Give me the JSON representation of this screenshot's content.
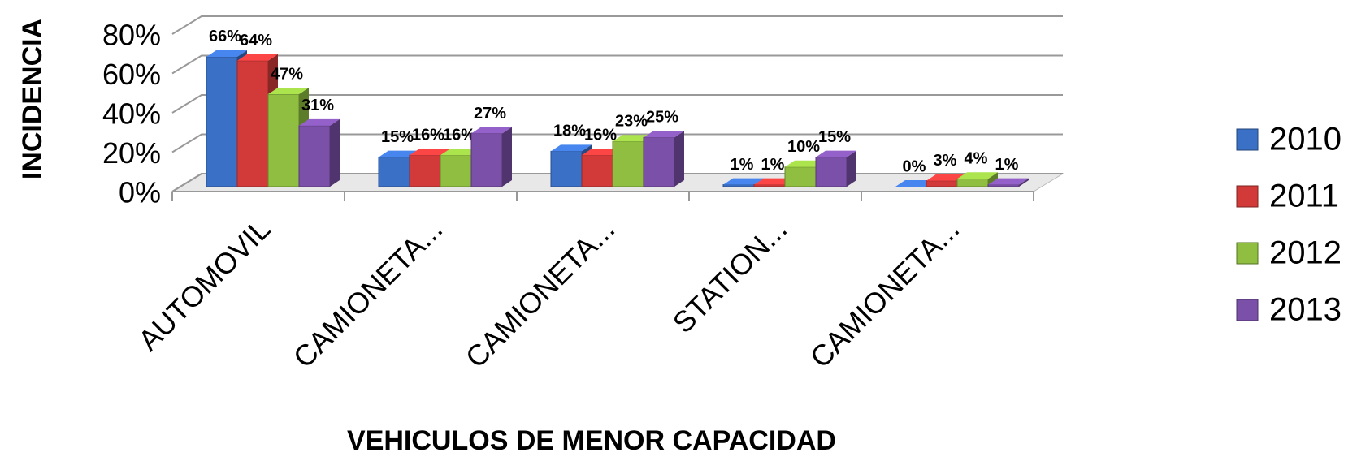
{
  "chart_data": {
    "type": "bar3d",
    "x_label": "VEHICULOS DE MENOR CAPACIDAD",
    "y_label": "INCIDENCIA",
    "categories": [
      "AUTOMOVIL",
      "CAMIONETA...",
      "CAMIONETA...",
      "STATION...",
      "CAMIONETA..."
    ],
    "series": [
      {
        "name": "2010",
        "color": "#3a70c6",
        "values": [
          66,
          15,
          18,
          1,
          0
        ],
        "value_labels": [
          "66%",
          "15%",
          "18%",
          "1%",
          "0%"
        ]
      },
      {
        "name": "2011",
        "color": "#d23a3a",
        "values": [
          64,
          16,
          16,
          1,
          3
        ],
        "value_labels": [
          "64%",
          "16%",
          "16%",
          "1%",
          "3%"
        ]
      },
      {
        "name": "2012",
        "color": "#8fbe40",
        "values": [
          47,
          16,
          23,
          10,
          4
        ],
        "value_labels": [
          "47%",
          "16%",
          "23%",
          "10%",
          "4%"
        ]
      },
      {
        "name": "2013",
        "color": "#7b50a8",
        "values": [
          31,
          27,
          25,
          15,
          1
        ],
        "value_labels": [
          "31%",
          "27%",
          "25%",
          "15%",
          "1%"
        ]
      }
    ],
    "ylim": [
      0,
      80
    ],
    "yticks": [
      {
        "value": 0,
        "label": "0%"
      },
      {
        "value": 20,
        "label": "20%"
      },
      {
        "value": 40,
        "label": "40%"
      },
      {
        "value": 60,
        "label": "60%"
      },
      {
        "value": 80,
        "label": "80%"
      }
    ],
    "grid": true,
    "legend": "right"
  }
}
